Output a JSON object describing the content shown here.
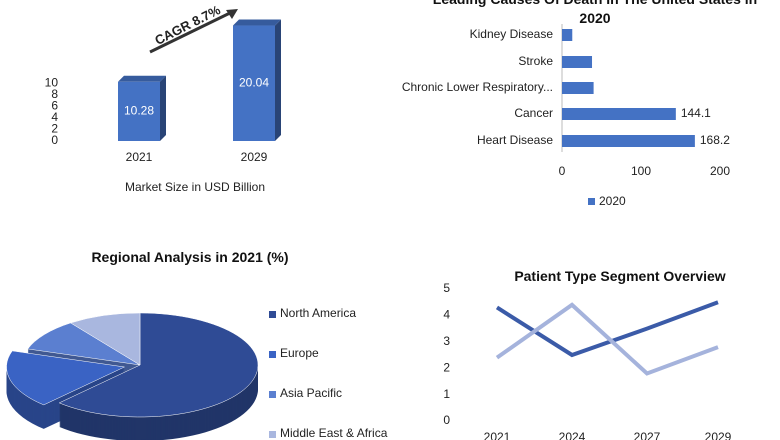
{
  "chart_data": [
    {
      "type": "bar",
      "categories": [
        "2021",
        "2029"
      ],
      "values": [
        10.28,
        20.04
      ],
      "color": "#4472c4",
      "ylim": [
        0,
        21
      ],
      "yticks": [
        0,
        2,
        4,
        6,
        8,
        10
      ],
      "x_label": "Market Size in USD Billion",
      "annotation": "CAGR 8.7%"
    },
    {
      "type": "barh",
      "title": "Leading Causes Of Death In The United States in 2020",
      "categories": [
        "Kidney Disease",
        "Stroke",
        "Chronic Lower Respiratory...",
        "Cancer",
        "Heart Disease"
      ],
      "series": [
        {
          "name": "2020",
          "color": "#4472c4",
          "values": [
            13,
            38,
            40,
            144.1,
            168.2
          ],
          "value_labels": [
            null,
            null,
            null,
            "144.1",
            "168.2"
          ]
        }
      ],
      "xlim": [
        0,
        200
      ],
      "xticks": [
        0,
        100,
        200
      ],
      "legend": "bottom"
    },
    {
      "type": "pie",
      "title": "Regional Analysis in 2021 (%)",
      "categories": [
        "North America",
        "Europe",
        "Asia Pacific",
        "Middle East & Africa"
      ],
      "values": [
        62,
        18,
        10,
        10
      ],
      "colors": [
        "#2f4b95",
        "#3a63c4",
        "#5b7fd0",
        "#a9b7df"
      ],
      "legend": "right"
    },
    {
      "type": "line",
      "title": "Patient Type Segment Overview",
      "categories": [
        "2021",
        "2024",
        "2027",
        "2029"
      ],
      "series": [
        {
          "color": "#3b5ba8",
          "values": [
            4.3,
            2.5,
            3.5,
            4.5
          ]
        },
        {
          "color": "#a5b3dc",
          "values": [
            2.4,
            4.4,
            1.8,
            2.8
          ]
        }
      ],
      "ylim": [
        0,
        5
      ],
      "yticks": [
        0,
        1,
        2,
        3,
        4,
        5
      ]
    }
  ]
}
